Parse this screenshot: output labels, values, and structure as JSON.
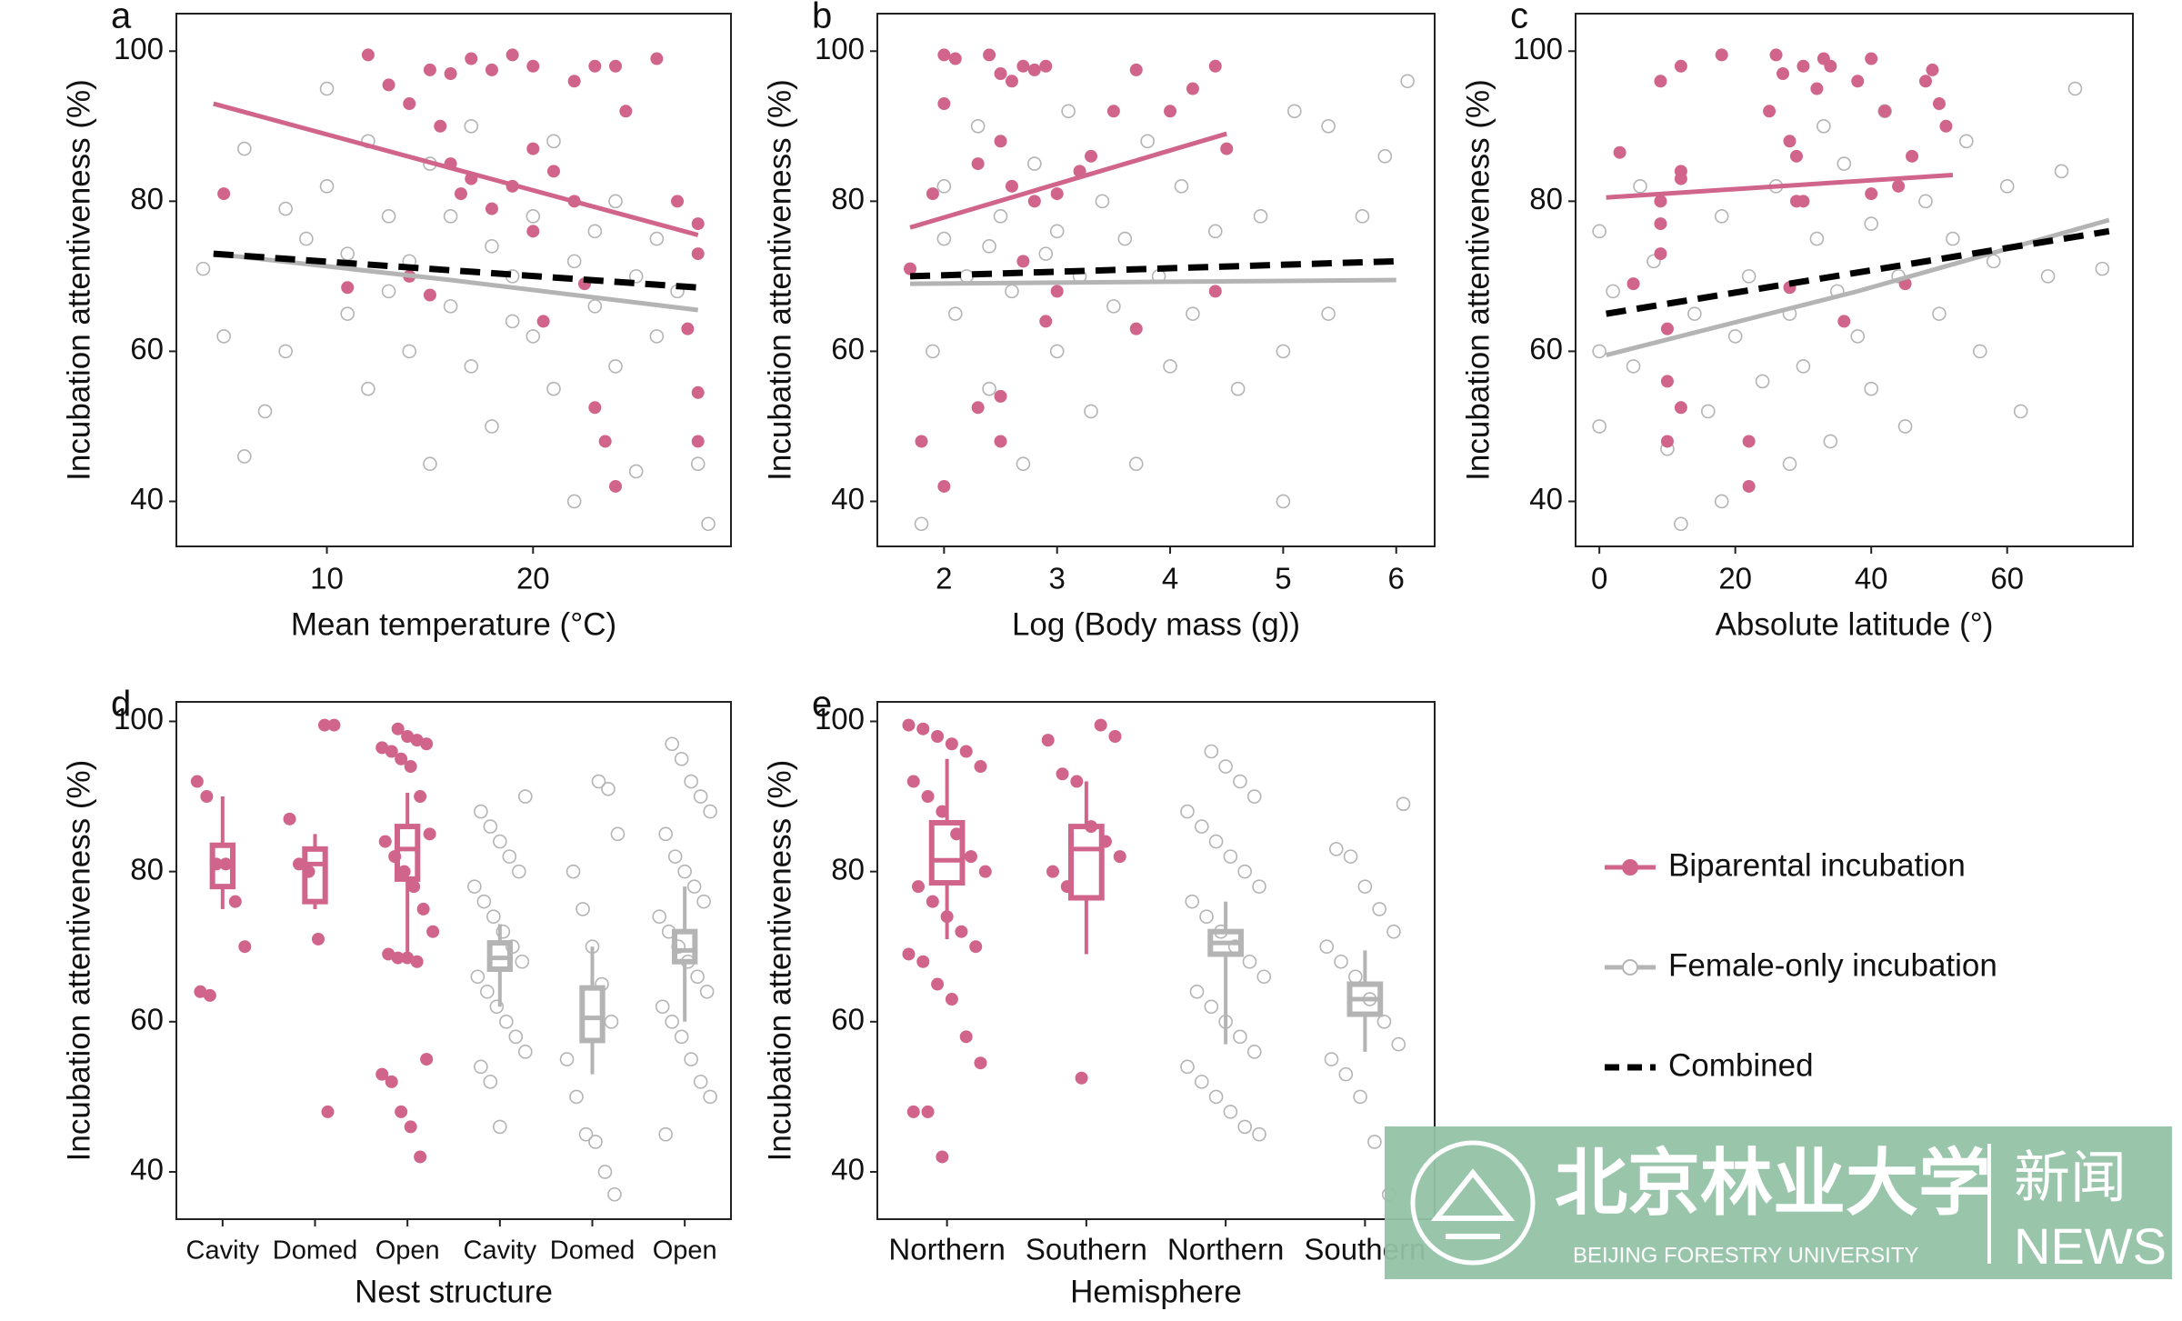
{
  "chart_data": [
    {
      "type": "scatter",
      "label": "a",
      "xlabel": "Mean temperature (°C)",
      "ylabel": "Incubation attentiveness (%)",
      "xlim": [
        2.7,
        29.6
      ],
      "xticks": [
        10,
        20
      ],
      "ylim": [
        34,
        105
      ],
      "yticks": [
        40,
        60,
        80,
        100
      ],
      "series": [
        {
          "x": [
            5,
            12,
            13,
            14,
            15,
            16,
            17,
            18,
            19,
            20,
            22,
            23,
            24,
            26,
            24.5,
            15.5,
            16,
            17,
            19,
            20,
            21,
            22,
            18,
            20,
            16.5,
            14,
            15,
            20.5,
            22.5,
            23,
            23.5,
            24,
            27,
            28,
            28,
            27.5,
            28,
            28,
            11
          ],
          "y": [
            81,
            99.5,
            95.5,
            93,
            97.5,
            97,
            99,
            97.5,
            99.5,
            98,
            96,
            98,
            98,
            99,
            92,
            90,
            85,
            83,
            82,
            87,
            84,
            80,
            79,
            76,
            81,
            70,
            67.5,
            64,
            69,
            52.5,
            48,
            42,
            80,
            77,
            73,
            63,
            54.5,
            48,
            68.5
          ],
          "fit": {
            "x": [
              4.5,
              28
            ],
            "y": [
              93,
              75.5
            ]
          }
        },
        {
          "x": [
            4,
            5,
            6,
            7,
            8,
            9,
            10,
            10,
            11,
            12,
            12,
            13,
            14,
            14,
            15,
            15,
            16,
            17,
            17,
            18,
            18,
            19,
            20,
            20,
            21,
            21,
            22,
            22,
            23,
            24,
            24,
            25,
            25,
            26,
            26,
            27,
            28,
            28.5,
            6,
            8,
            11,
            13,
            16,
            19,
            23
          ],
          "y": [
            71,
            62,
            46,
            52,
            60,
            75,
            82,
            95,
            65,
            88,
            55,
            78,
            72,
            60,
            85,
            45,
            66,
            90,
            58,
            74,
            50,
            70,
            78,
            62,
            88,
            55,
            72,
            40,
            66,
            80,
            58,
            70,
            44,
            75,
            62,
            68,
            45,
            37,
            87,
            79,
            73,
            68,
            78,
            64,
            76
          ],
          "fit": {
            "x": [
              4.5,
              16,
              28
            ],
            "y": [
              73,
              69.5,
              65.5
            ]
          }
        }
      ],
      "combined_fit": {
        "x": [
          4.5,
          28
        ],
        "y": [
          73,
          68.5
        ]
      }
    },
    {
      "type": "scatter",
      "label": "b",
      "xlabel": "Log (Body mass (g))",
      "ylabel": "Incubation attentiveness (%)",
      "xlim": [
        1.41,
        6.34
      ],
      "xticks": [
        2,
        3,
        4,
        5,
        6
      ],
      "ylim": [
        34,
        105
      ],
      "yticks": [
        40,
        60,
        80,
        100
      ],
      "series": [
        {
          "x": [
            1.7,
            1.8,
            1.9,
            2,
            2.1,
            2,
            2.3,
            2.4,
            2.5,
            2.6,
            2.7,
            2.8,
            2.9,
            2.5,
            2.6,
            2.8,
            3,
            3.2,
            3.5,
            3.7,
            4,
            4.2,
            4.4,
            4.5,
            3.3,
            2,
            2.3,
            2.5,
            2.9,
            3.7,
            2.5,
            4.4,
            2.7,
            3
          ],
          "y": [
            71,
            48,
            81,
            99.5,
            99,
            93,
            85,
            99.5,
            97,
            96,
            98,
            97.5,
            98,
            88,
            82,
            80,
            81,
            84,
            92,
            97.5,
            92,
            95,
            98,
            87,
            86,
            42,
            52.5,
            54,
            64,
            63,
            48,
            68,
            72,
            68
          ],
          "fit": {
            "x": [
              1.7,
              4.5
            ],
            "y": [
              76.5,
              89
            ]
          }
        },
        {
          "x": [
            1.8,
            1.9,
            2,
            2,
            2.1,
            2.2,
            2.3,
            2.4,
            2.5,
            2.6,
            2.7,
            2.8,
            2.9,
            3,
            3.1,
            3.2,
            3.3,
            3.4,
            3.5,
            3.6,
            3.7,
            3.8,
            3.9,
            4,
            4.1,
            4.2,
            4.4,
            4.6,
            4.8,
            5,
            5,
            5.1,
            5.4,
            5.4,
            5.7,
            5.9,
            6.1,
            2.4,
            3
          ],
          "y": [
            37,
            60,
            75,
            82,
            65,
            70,
            90,
            55,
            78,
            68,
            45,
            85,
            73,
            60,
            92,
            70,
            52,
            80,
            66,
            75,
            45,
            88,
            70,
            58,
            82,
            65,
            76,
            55,
            78,
            60,
            40,
            92,
            90,
            65,
            78,
            86,
            96,
            74,
            76
          ],
          "fit": {
            "x": [
              1.7,
              6
            ],
            "y": [
              69,
              69.5
            ]
          }
        }
      ],
      "combined_fit": {
        "x": [
          1.7,
          6
        ],
        "y": [
          70,
          72
        ]
      }
    },
    {
      "type": "scatter",
      "label": "c",
      "xlabel": "Absolute latitude (°)",
      "ylabel": "Incubation attentiveness (%)",
      "xlim": [
        -3.5,
        78.5
      ],
      "xticks": [
        0,
        20,
        40,
        60
      ],
      "ylim": [
        34,
        105
      ],
      "yticks": [
        40,
        60,
        80,
        100
      ],
      "series": [
        {
          "x": [
            3,
            5,
            9,
            9,
            9,
            9,
            10,
            10,
            10,
            12,
            12,
            12,
            12,
            18,
            22,
            22,
            25,
            26,
            27,
            28,
            29,
            29,
            30,
            32,
            33,
            34,
            38,
            40,
            42,
            44,
            46,
            48,
            49,
            50,
            51,
            28,
            30,
            40,
            45,
            36
          ],
          "y": [
            86.5,
            69,
            96,
            80,
            77,
            73,
            63,
            56,
            48,
            98,
            83,
            84,
            52.5,
            99.5,
            48,
            42,
            92,
            99.5,
            97,
            88,
            86,
            80,
            98,
            95,
            99,
            98,
            96,
            99,
            92,
            82,
            86,
            96,
            97.5,
            93,
            90,
            68.5,
            80,
            81,
            69,
            64
          ],
          "fit": {
            "x": [
              1,
              52
            ],
            "y": [
              80.5,
              83.5
            ]
          }
        },
        {
          "x": [
            0,
            0,
            0,
            2,
            5,
            6,
            8,
            10,
            12,
            14,
            16,
            18,
            18,
            20,
            22,
            24,
            26,
            28,
            28,
            30,
            32,
            33,
            34,
            35,
            36,
            38,
            40,
            40,
            42,
            44,
            45,
            48,
            50,
            52,
            54,
            56,
            58,
            60,
            62,
            66,
            68,
            70,
            74
          ],
          "y": [
            76,
            60,
            50,
            68,
            58,
            82,
            72,
            47,
            37,
            65,
            52,
            40,
            78,
            62,
            70,
            56,
            82,
            45,
            65,
            58,
            75,
            90,
            48,
            68,
            85,
            62,
            77,
            55,
            92,
            70,
            50,
            80,
            65,
            75,
            88,
            60,
            72,
            82,
            52,
            70,
            84,
            95,
            71
          ],
          "fit": {
            "x": [
              1,
              38,
              75
            ],
            "y": [
              59.5,
              68,
              77.5
            ]
          }
        }
      ],
      "combined_fit": {
        "x": [
          1,
          75
        ],
        "y": [
          65,
          76
        ]
      }
    },
    {
      "type": "box",
      "label": "d",
      "xlabel": "Nest structure",
      "ylabel": "Incubation attentiveness (%)",
      "ylim": [
        33.7,
        102.6
      ],
      "yticks": [
        40,
        60,
        80,
        100
      ],
      "categories": [
        {
          "label": "Cavity",
          "group": 0,
          "box": {
            "whislo": 75,
            "q1": 78,
            "med": 81,
            "q3": 83.5,
            "whishi": 90
          },
          "points": [
            92,
            90,
            81,
            81,
            76,
            70,
            64,
            63.5
          ]
        },
        {
          "label": "Domed",
          "group": 0,
          "box": {
            "whislo": 75,
            "q1": 76,
            "med": 81,
            "q3": 83,
            "whishi": 85
          },
          "points": [
            99.5,
            99.5,
            87,
            81,
            80,
            71,
            48
          ]
        },
        {
          "label": "Open",
          "group": 0,
          "box": {
            "whislo": 68.5,
            "q1": 79,
            "med": 83,
            "q3": 86,
            "whishi": 90.5
          },
          "points": [
            99,
            98,
            97.5,
            97,
            96.5,
            96,
            95,
            94,
            90,
            85,
            84,
            82,
            80,
            78,
            75,
            72,
            69,
            68.5,
            68.5,
            68,
            55,
            53,
            52,
            48,
            46,
            42
          ]
        },
        {
          "label": "Cavity",
          "group": 1,
          "box": {
            "whislo": 62,
            "q1": 67,
            "med": 68.5,
            "q3": 70.5,
            "whishi": 73
          },
          "points": [
            90,
            88,
            86,
            84,
            82,
            80,
            78,
            76,
            74,
            72,
            70,
            68,
            66,
            64,
            62,
            60,
            58,
            56,
            54,
            52,
            46
          ]
        },
        {
          "label": "Domed",
          "group": 1,
          "box": {
            "whislo": 53,
            "q1": 57.5,
            "med": 60.5,
            "q3": 64.5,
            "whishi": 70
          },
          "points": [
            92,
            91,
            85,
            80,
            75,
            70,
            65,
            60,
            55,
            50,
            45,
            44,
            40,
            37
          ]
        },
        {
          "label": "Open",
          "group": 1,
          "box": {
            "whislo": 60,
            "q1": 68,
            "med": 69.5,
            "q3": 72,
            "whishi": 78
          },
          "points": [
            97,
            95,
            92,
            90,
            88,
            85,
            82,
            80,
            78,
            76,
            74,
            72,
            70,
            68,
            66,
            64,
            62,
            60,
            58,
            55,
            52,
            50,
            45
          ]
        }
      ]
    },
    {
      "type": "box",
      "label": "e",
      "xlabel": "Hemisphere",
      "ylabel": "Incubation attentiveness (%)",
      "ylim": [
        33.7,
        102.6
      ],
      "yticks": [
        40,
        60,
        80,
        100
      ],
      "categories": [
        {
          "label": "Northern",
          "group": 0,
          "box": {
            "whislo": 71,
            "q1": 78.5,
            "med": 81.5,
            "q3": 86.5,
            "whishi": 95
          },
          "points": [
            99.5,
            99,
            98,
            97,
            96,
            94,
            92,
            90,
            88,
            85,
            82,
            80,
            78,
            76,
            74,
            72,
            70,
            69,
            68,
            65,
            63,
            58,
            54.5,
            48,
            48,
            42
          ]
        },
        {
          "label": "Southern",
          "group": 0,
          "box": {
            "whislo": 69,
            "q1": 76.5,
            "med": 83,
            "q3": 86,
            "whishi": 92
          },
          "points": [
            99.5,
            98,
            97.5,
            93,
            92,
            86,
            84,
            82,
            80,
            78,
            52.5
          ]
        },
        {
          "label": "Northern",
          "group": 1,
          "box": {
            "whislo": 57,
            "q1": 69,
            "med": 70.5,
            "q3": 72,
            "whishi": 76
          },
          "points": [
            96,
            94,
            92,
            90,
            88,
            86,
            84,
            82,
            80,
            78,
            76,
            74,
            72,
            70,
            68,
            66,
            64,
            62,
            60,
            58,
            56,
            54,
            52,
            50,
            48,
            46,
            45
          ]
        },
        {
          "label": "Southern",
          "group": 1,
          "box": {
            "whislo": 56,
            "q1": 61,
            "med": 63,
            "q3": 65,
            "whishi": 69.5
          },
          "points": [
            89,
            83,
            82,
            78,
            75,
            72,
            70,
            68,
            66,
            63,
            60,
            57,
            55,
            53,
            50,
            44,
            37
          ]
        }
      ]
    }
  ],
  "legend": [
    {
      "name": "Biparental incubation",
      "color": "#d0648a",
      "style": "filled"
    },
    {
      "name": "Female-only incubation",
      "color": "#b4b4b4",
      "style": "open"
    },
    {
      "name": "Combined",
      "color": "#000000",
      "style": "dashed"
    }
  ],
  "watermark": {
    "name": "北京林业大学",
    "english": "BEIJING FORESTRY UNIVERSITY",
    "news_cn": "新闻",
    "news_en": "NEWS"
  }
}
